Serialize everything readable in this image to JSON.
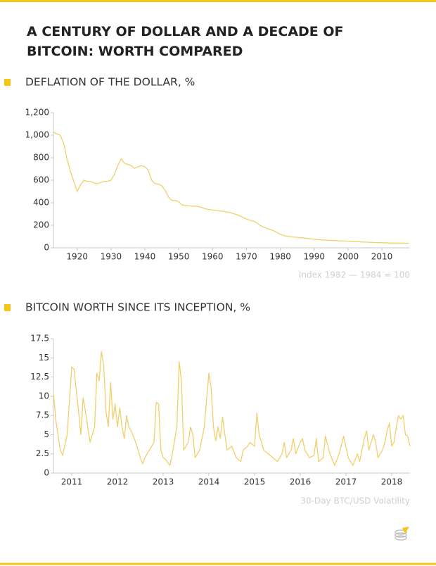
{
  "title": "A CENTURY OF DOLLAR AND A DECADE OF BITCOIN: WORTH COMPARED",
  "chart_data": [
    {
      "type": "line",
      "title": "DEFLATION OF THE DOLLAR, %",
      "note": "Index 1982 — 1984 = 100",
      "color": "#f2cf6b",
      "x": [
        1913,
        1914,
        1915,
        1916,
        1917,
        1918,
        1919,
        1920,
        1921,
        1922,
        1923,
        1924,
        1925,
        1926,
        1927,
        1928,
        1929,
        1930,
        1931,
        1932,
        1933,
        1934,
        1935,
        1936,
        1937,
        1938,
        1939,
        1940,
        1941,
        1942,
        1943,
        1944,
        1945,
        1946,
        1947,
        1948,
        1949,
        1950,
        1951,
        1952,
        1953,
        1954,
        1955,
        1956,
        1957,
        1958,
        1959,
        1960,
        1961,
        1962,
        1963,
        1964,
        1965,
        1966,
        1967,
        1968,
        1969,
        1970,
        1971,
        1972,
        1973,
        1974,
        1975,
        1976,
        1977,
        1978,
        1979,
        1980,
        1981,
        1982,
        1983,
        1984,
        1985,
        1986,
        1987,
        1988,
        1989,
        1990,
        1991,
        1992,
        1993,
        1994,
        1995,
        1996,
        1997,
        1998,
        1999,
        2000,
        2001,
        2002,
        2003,
        2004,
        2005,
        2006,
        2007,
        2008,
        2009,
        2010,
        2011,
        2012,
        2013,
        2014,
        2015,
        2016,
        2017,
        2018
      ],
      "values": [
        1030,
        1010,
        1000,
        930,
        790,
        680,
        590,
        500,
        560,
        600,
        590,
        590,
        575,
        570,
        580,
        590,
        590,
        600,
        650,
        730,
        790,
        750,
        740,
        730,
        705,
        720,
        730,
        720,
        690,
        600,
        570,
        565,
        550,
        510,
        450,
        420,
        420,
        410,
        380,
        375,
        372,
        370,
        370,
        365,
        355,
        345,
        340,
        335,
        332,
        328,
        324,
        320,
        315,
        305,
        296,
        285,
        270,
        255,
        245,
        237,
        222,
        200,
        184,
        174,
        163,
        152,
        136,
        120,
        109,
        102,
        99,
        96,
        92,
        90,
        87,
        84,
        80,
        76,
        73,
        71,
        69,
        67,
        66,
        64,
        62,
        61,
        60,
        58,
        56,
        55,
        54,
        52,
        51,
        49,
        48,
        46,
        46,
        45,
        44,
        43,
        43,
        42,
        42,
        42,
        41,
        40
      ],
      "xlim": [
        1913,
        2018.3
      ],
      "ylim": [
        0,
        1200
      ],
      "xticks": [
        1920,
        1930,
        1940,
        1950,
        1960,
        1970,
        1980,
        1990,
        2000,
        2010
      ],
      "yticks": [
        0,
        200,
        400,
        600,
        800,
        {
          "value": 1000,
          "label": "1,000"
        },
        {
          "value": 1200,
          "label": "1,200"
        }
      ]
    },
    {
      "type": "line",
      "title": "BITCOIN WORTH SINCE ITS INCEPTION, %",
      "note": "30-Day BTC/USD Volatility",
      "color": "#f2cf6b",
      "x": [
        2010.6,
        2010.65,
        2010.75,
        2010.8,
        2010.9,
        2011.0,
        2011.05,
        2011.15,
        2011.2,
        2011.25,
        2011.3,
        2011.4,
        2011.5,
        2011.55,
        2011.6,
        2011.65,
        2011.7,
        2011.75,
        2011.8,
        2011.85,
        2011.9,
        2011.95,
        2012.0,
        2012.05,
        2012.1,
        2012.15,
        2012.2,
        2012.25,
        2012.3,
        2012.4,
        2012.5,
        2012.55,
        2012.6,
        2012.7,
        2012.8,
        2012.85,
        2012.9,
        2012.95,
        2013.0,
        2013.05,
        2013.15,
        2013.2,
        2013.3,
        2013.35,
        2013.4,
        2013.45,
        2013.55,
        2013.6,
        2013.65,
        2013.7,
        2013.8,
        2013.9,
        2014.0,
        2014.05,
        2014.1,
        2014.15,
        2014.2,
        2014.25,
        2014.3,
        2014.35,
        2014.4,
        2014.5,
        2014.6,
        2014.7,
        2014.75,
        2014.85,
        2014.9,
        2015.0,
        2015.05,
        2015.1,
        2015.2,
        2015.3,
        2015.4,
        2015.5,
        2015.6,
        2015.65,
        2015.7,
        2015.8,
        2015.85,
        2015.9,
        2016.0,
        2016.05,
        2016.1,
        2016.2,
        2016.3,
        2016.35,
        2016.4,
        2016.5,
        2016.55,
        2016.65,
        2016.75,
        2016.85,
        2016.95,
        2017.05,
        2017.15,
        2017.25,
        2017.3,
        2017.4,
        2017.45,
        2017.5,
        2017.6,
        2017.65,
        2017.7,
        2017.8,
        2017.85,
        2017.9,
        2017.95,
        2018.0,
        2018.05,
        2018.1,
        2018.15,
        2018.2,
        2018.25,
        2018.3,
        2018.35,
        2018.4
      ],
      "values": [
        10.5,
        7,
        3,
        2.3,
        5,
        13.8,
        13.5,
        8,
        5,
        9.8,
        8,
        4,
        6,
        13,
        12,
        15.8,
        14,
        8,
        6,
        11.8,
        7,
        9,
        6,
        8.5,
        6,
        4.5,
        7.5,
        6,
        5.5,
        4,
        2,
        1.2,
        2,
        3,
        4,
        9.2,
        9,
        3,
        2,
        1.8,
        1,
        2.5,
        6,
        14.5,
        12,
        3,
        4,
        6,
        5,
        2,
        3,
        6,
        13,
        11,
        6,
        4.2,
        6,
        4.5,
        7.3,
        5,
        3,
        3.5,
        2,
        1.5,
        3,
        3.5,
        4,
        3.5,
        7.8,
        5,
        3,
        2.5,
        2,
        1.5,
        2.5,
        4,
        2,
        3,
        4.5,
        2.5,
        4,
        4.5,
        3,
        2,
        2.3,
        4.5,
        1.5,
        2,
        4.8,
        2.5,
        1,
        2.5,
        4.8,
        2,
        1,
        2.5,
        1.5,
        4.5,
        5.5,
        3,
        5,
        4,
        2,
        3,
        4,
        5.5,
        6.5,
        3.5,
        4,
        6,
        7.5,
        7,
        7.5,
        5,
        4.8,
        3.5
      ],
      "xlim": [
        2010.6,
        2018.4
      ],
      "ylim": [
        0,
        17.5
      ],
      "xticks": [
        2011,
        2012,
        2013,
        2014,
        2015,
        2016,
        2017,
        2018
      ],
      "yticks": [
        0,
        2.5,
        5,
        7.5,
        10,
        12.5,
        15,
        17.5
      ]
    }
  ]
}
